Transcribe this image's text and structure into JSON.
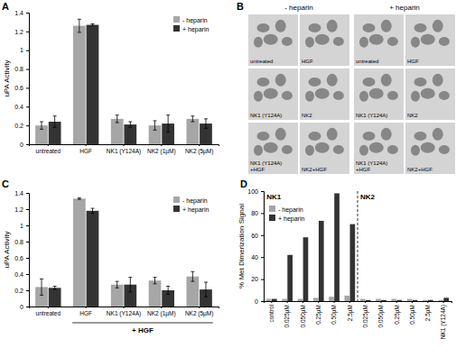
{
  "chart_data": [
    {
      "type": "bar",
      "title": "A",
      "y_label": "uPA Activity",
      "categories": [
        "untreated",
        "HGF",
        "NK1 (Y124A)",
        "NK2 (1µM)",
        "NK2 (5µM)"
      ],
      "series": [
        {
          "name": "- heparin",
          "color": "#a6a6a6",
          "values": [
            0.2,
            1.26,
            0.27,
            0.2,
            0.27
          ],
          "errors": [
            0.04,
            0.07,
            0.04,
            0.05,
            0.03
          ]
        },
        {
          "name": "+ heparin",
          "color": "#333333",
          "values": [
            0.24,
            1.27,
            0.21,
            0.22,
            0.22
          ],
          "errors": [
            0.06,
            0.01,
            0.03,
            0.09,
            0.05
          ]
        }
      ],
      "ylim": [
        0,
        1.4
      ],
      "yticks": [
        0,
        0.2,
        0.4,
        0.6,
        0.8,
        1,
        1.2,
        1.4
      ],
      "legend": "upper right"
    },
    {
      "type": "bar",
      "title": "C",
      "y_label": "uPA Activity",
      "categories": [
        "untreated",
        "HGF",
        "NK1 (Y124A)",
        "NK2 (1µM)",
        "NK2 (5µM)"
      ],
      "series": [
        {
          "name": "- heparin",
          "color": "#a6a6a6",
          "values": [
            0.24,
            1.33,
            0.27,
            0.32,
            0.37
          ],
          "errors": [
            0.1,
            0.01,
            0.04,
            0.04,
            0.06
          ]
        },
        {
          "name": "+ heparin",
          "color": "#333333",
          "values": [
            0.23,
            1.18,
            0.27,
            0.2,
            0.21
          ],
          "errors": [
            0.02,
            0.03,
            0.09,
            0.05,
            0.09
          ]
        }
      ],
      "annotations": [
        {
          "text": "+ HGF",
          "from": 1,
          "to": 4,
          "position": "below"
        }
      ],
      "ylim": [
        0,
        1.4
      ],
      "yticks": [
        0,
        0.2,
        0.4,
        0.6,
        0.8,
        1,
        1.2,
        1.4
      ],
      "legend": "upper right"
    },
    {
      "type": "bar",
      "title": "D",
      "y_label": "% Met Dimerization Signal",
      "categories": [
        "control",
        "0.025µM",
        "0.050µM",
        "0.25µM",
        "0.50µM",
        "2.5µM",
        "0.025µM",
        "0.050µM",
        "0.25µM",
        "0.50µM",
        "2.5µM",
        "NK1 (Y124A)"
      ],
      "series": [
        {
          "name": "- heparin",
          "color": "#a6a6a6",
          "values": [
            2,
            2,
            2,
            3,
            4,
            5,
            2,
            2,
            2,
            2,
            1,
            1
          ]
        },
        {
          "name": "+ heparin",
          "color": "#333333",
          "values": [
            2,
            42,
            58,
            73,
            98,
            70,
            1,
            1,
            1,
            1,
            1,
            3
          ]
        }
      ],
      "annotations": [
        {
          "text": "NK1",
          "from": 0,
          "to": 5,
          "position": "top"
        },
        {
          "text": "NK2",
          "from": 6,
          "to": 11,
          "position": "top"
        }
      ],
      "ylim": [
        0,
        100
      ],
      "yticks": [
        0,
        20,
        40,
        60,
        80,
        100
      ],
      "legend": "upper left"
    }
  ],
  "image_panel": {
    "title": "B",
    "groups": [
      {
        "label": "- heparin",
        "images": [
          [
            "untreated"
          ],
          [
            "HGF"
          ],
          [
            "NK1 (Y124A)"
          ],
          [
            "NK2"
          ],
          [
            "NK1 (Y124A)",
            "+HGF"
          ],
          [
            "NK2+HGF"
          ]
        ]
      },
      {
        "label": "+ heparin",
        "images": [
          [
            "untreated"
          ],
          [
            "HGF"
          ],
          [
            "NK1 (Y124A)"
          ],
          [
            "NK2"
          ],
          [
            "NK1 (Y124A)",
            "+HGF"
          ],
          [
            "NK2+HGF"
          ]
        ]
      }
    ]
  }
}
